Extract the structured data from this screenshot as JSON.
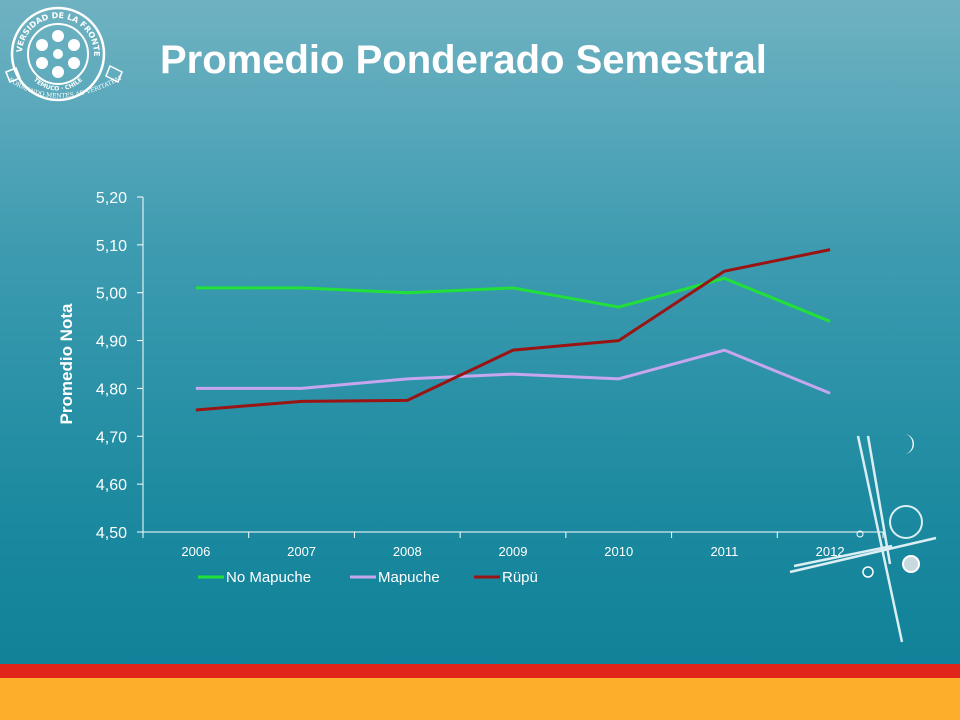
{
  "slide": {
    "title": "Promedio Ponderado Semestral"
  },
  "logo": {
    "ring_top_text": "UNIVERSIDAD DE LA FRONTERA",
    "ring_bottom_text": "TEMUCO · CHILE",
    "motto": "FORMANDO MENTES AD VERITATEM"
  },
  "colors": {
    "no_mapuche": "#22e03a",
    "mapuche": "#c6a6ee",
    "rupu": "#9a1414",
    "red_band": "#e1251b",
    "orange_band": "#fdae2b"
  },
  "chart_data": {
    "type": "line",
    "title": "",
    "xlabel": "",
    "ylabel": "Promedio Nota",
    "categories": [
      "2006",
      "2007",
      "2008",
      "2009",
      "2010",
      "2011",
      "2012"
    ],
    "ylim": [
      4.5,
      5.2
    ],
    "yticks": [
      "4,50",
      "4,60",
      "4,70",
      "4,80",
      "4,90",
      "5,00",
      "5,10",
      "5,20"
    ],
    "legend_position": "bottom",
    "grid": false,
    "series": [
      {
        "name": "No Mapuche",
        "values": [
          5.01,
          5.01,
          5.0,
          5.01,
          4.97,
          5.03,
          4.94
        ]
      },
      {
        "name": "Mapuche",
        "values": [
          4.8,
          4.8,
          4.82,
          4.83,
          4.82,
          4.88,
          4.79
        ]
      },
      {
        "name": "Rüpü",
        "values": [
          4.755,
          4.773,
          4.775,
          4.88,
          4.9,
          5.045,
          5.09
        ]
      }
    ]
  }
}
